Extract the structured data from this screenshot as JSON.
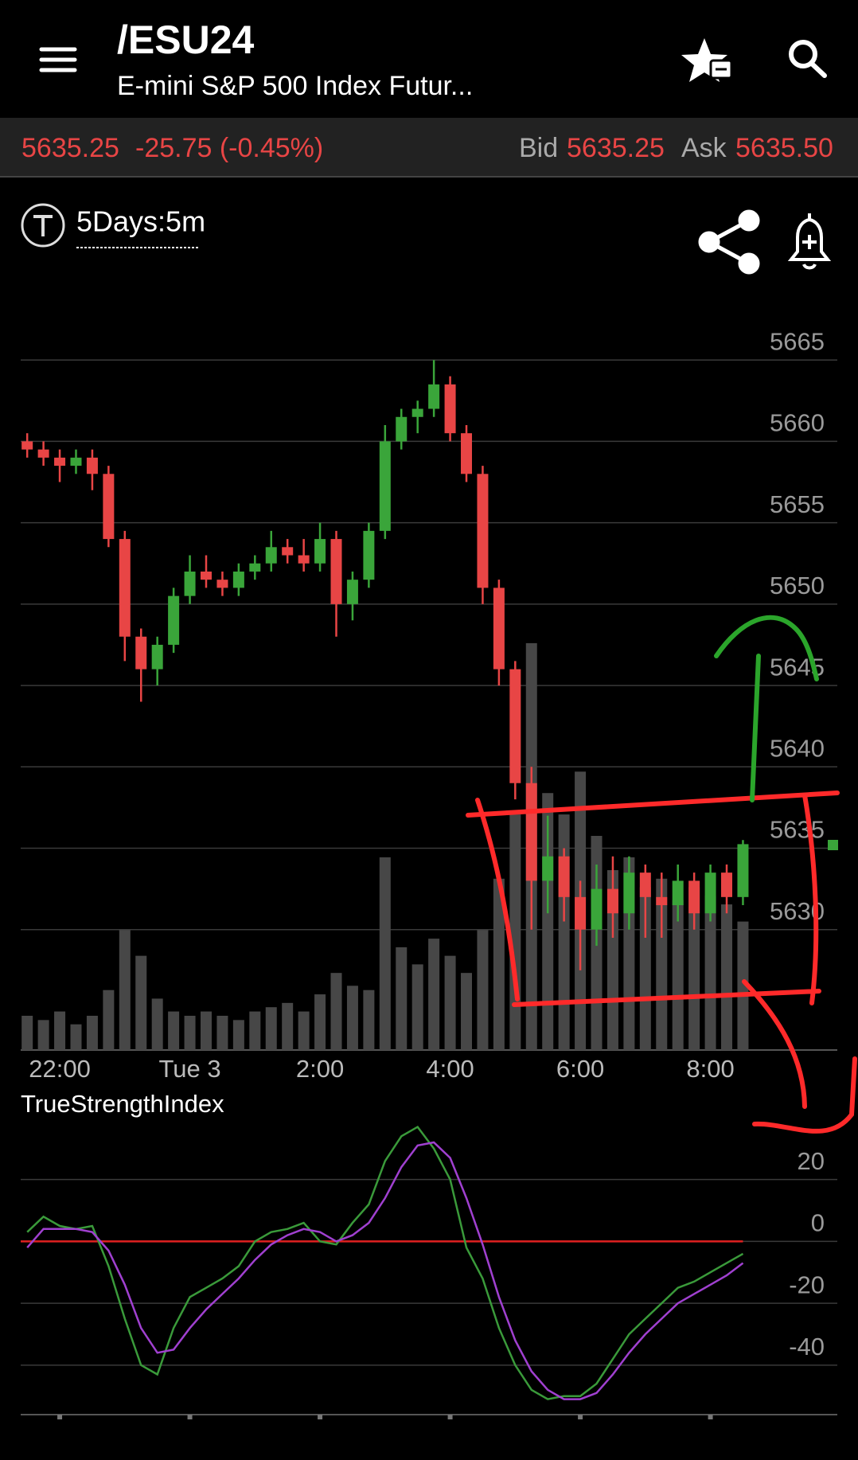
{
  "header": {
    "symbol": "/ESU24",
    "description": "E-mini S&P 500 Index Futur..."
  },
  "quote": {
    "last": "5635.25",
    "change": "-25.75 (-0.45%)",
    "bid_label": "Bid",
    "bid": "5635.25",
    "ask_label": "Ask",
    "ask": "5635.50"
  },
  "toolbar": {
    "period": "5Days:5m"
  },
  "chart_data": [
    {
      "type": "candlestick",
      "x": [
        21.5,
        21.75,
        22,
        22.25,
        22.5,
        22.75,
        23,
        23.25,
        23.5,
        23.75,
        24,
        24.25,
        24.5,
        24.75,
        25,
        25.25,
        25.5,
        25.75,
        26,
        26.25,
        26.5,
        26.75,
        27,
        27.25,
        27.5,
        27.75,
        28,
        28.25,
        28.5,
        28.75,
        29,
        29.25,
        29.5,
        29.75,
        30,
        30.25,
        30.5,
        30.75,
        31,
        31.25,
        31.5,
        31.75,
        32,
        32.25,
        32.5
      ],
      "open": [
        5660,
        5659.5,
        5659,
        5658.5,
        5659,
        5658,
        5654,
        5648,
        5646,
        5647.5,
        5650.5,
        5652,
        5651.5,
        5651,
        5652,
        5652.5,
        5653.5,
        5653,
        5652.5,
        5654,
        5650,
        5651.5,
        5654.5,
        5660,
        5661.5,
        5662,
        5663.5,
        5660.5,
        5658,
        5651,
        5646,
        5639,
        5633,
        5634.5,
        5632,
        5630,
        5632.5,
        5631,
        5633.5,
        5632,
        5631.5,
        5633,
        5631,
        5633.5,
        5632
      ],
      "high": [
        5660.5,
        5660,
        5659.5,
        5659.5,
        5659.5,
        5658.5,
        5654.5,
        5648.5,
        5648,
        5651,
        5653,
        5653,
        5652,
        5652.5,
        5653,
        5654.5,
        5654,
        5654,
        5655,
        5654.5,
        5652,
        5655,
        5661,
        5662,
        5662.5,
        5665,
        5664,
        5661,
        5658.5,
        5651.5,
        5646.5,
        5640,
        5637,
        5635,
        5633,
        5634,
        5634.5,
        5634.5,
        5634,
        5633.5,
        5634,
        5633.5,
        5634,
        5634,
        5635.5
      ],
      "low": [
        5659,
        5658.5,
        5657.5,
        5658,
        5657,
        5653.5,
        5646.5,
        5644,
        5645,
        5647,
        5650,
        5651,
        5650.5,
        5650.5,
        5651.5,
        5652,
        5652.5,
        5652,
        5652,
        5648,
        5649,
        5651,
        5654,
        5659.5,
        5660.5,
        5661.5,
        5660,
        5657.5,
        5650,
        5645,
        5638,
        5630,
        5631,
        5630.5,
        5627.5,
        5629,
        5629.5,
        5630,
        5629.5,
        5629.5,
        5630.5,
        5630,
        5630.5,
        5631,
        5631.5
      ],
      "close": [
        5659.5,
        5659,
        5658.5,
        5659,
        5658,
        5654,
        5648,
        5646,
        5647.5,
        5650.5,
        5652,
        5651.5,
        5651,
        5652,
        5652.5,
        5653.5,
        5653,
        5652.5,
        5654,
        5650,
        5651.5,
        5654.5,
        5660,
        5661.5,
        5662,
        5663.5,
        5660.5,
        5658,
        5651,
        5646,
        5639,
        5633,
        5634.5,
        5632,
        5630,
        5632.5,
        5631,
        5633.5,
        5632,
        5631.5,
        5633,
        5631,
        5633.5,
        5632,
        5635.25
      ],
      "volume": [
        8,
        7,
        9,
        6,
        8,
        14,
        28,
        22,
        12,
        9,
        8,
        9,
        8,
        7,
        9,
        10,
        11,
        9,
        13,
        18,
        15,
        14,
        45,
        24,
        20,
        26,
        22,
        18,
        28,
        40,
        55,
        95,
        60,
        55,
        65,
        50,
        42,
        45,
        38,
        40,
        35,
        38,
        36,
        34,
        30
      ],
      "up_color": "#3aa53a",
      "down_color": "#e84545",
      "volume_color": "#474747",
      "xlim": [
        21.4,
        33.95
      ],
      "ylim": [
        5622.6,
        5667.7
      ],
      "vlim": [
        0,
        100
      ],
      "xticks": [
        {
          "value": 22,
          "label": "22:00"
        },
        {
          "value": 24,
          "label": "Tue 3"
        },
        {
          "value": 26,
          "label": "2:00"
        },
        {
          "value": 28,
          "label": "4:00"
        },
        {
          "value": 30,
          "label": "6:00"
        },
        {
          "value": 32,
          "label": "8:00"
        }
      ],
      "yticks": [
        5630,
        5635,
        5640,
        5645,
        5650,
        5655,
        5660,
        5665
      ],
      "grid": true
    },
    {
      "type": "line",
      "title": "TrueStrengthIndex",
      "x": [
        21.5,
        21.75,
        22,
        22.25,
        22.5,
        22.75,
        23,
        23.25,
        23.5,
        23.75,
        24,
        24.25,
        24.5,
        24.75,
        25,
        25.25,
        25.5,
        25.75,
        26,
        26.25,
        26.5,
        26.75,
        27,
        27.25,
        27.5,
        27.75,
        28,
        28.25,
        28.5,
        28.75,
        29,
        29.25,
        29.5,
        29.75,
        30,
        30.25,
        30.5,
        30.75,
        31,
        31.25,
        31.5,
        31.75,
        32,
        32.25,
        32.5
      ],
      "series": [
        {
          "color": "#3a9a3a",
          "values": [
            3,
            8,
            5,
            4,
            5,
            -8,
            -25,
            -40,
            -43,
            -28,
            -18,
            -15,
            -12,
            -8,
            0,
            3,
            4,
            6,
            0,
            -1,
            6,
            12,
            26,
            34,
            37,
            30,
            20,
            -2,
            -12,
            -28,
            -40,
            -48,
            -51,
            -50,
            -50,
            -46,
            -38,
            -30,
            -25,
            -20,
            -15,
            -13,
            -10,
            -7,
            -4
          ]
        },
        {
          "color": "#a040d0",
          "values": [
            -2,
            4,
            4,
            4,
            3,
            -3,
            -14,
            -28,
            -36,
            -35,
            -28,
            -22,
            -17,
            -12,
            -6,
            -1,
            2,
            4,
            3,
            0,
            2,
            6,
            14,
            24,
            31,
            32,
            27,
            14,
            -1,
            -18,
            -32,
            -42,
            -48,
            -51,
            -51,
            -49,
            -43,
            -36,
            -30,
            -25,
            -20,
            -17,
            -14,
            -11,
            -7
          ]
        }
      ],
      "reference_line": 0,
      "reference_color": "#e02020",
      "xlim": [
        21.4,
        33.95
      ],
      "ylim": [
        -56,
        38.7
      ],
      "xticks": [
        22,
        24,
        26,
        28,
        30,
        32
      ],
      "yticks": [
        -40,
        -20,
        0,
        20
      ],
      "grid": true
    }
  ]
}
